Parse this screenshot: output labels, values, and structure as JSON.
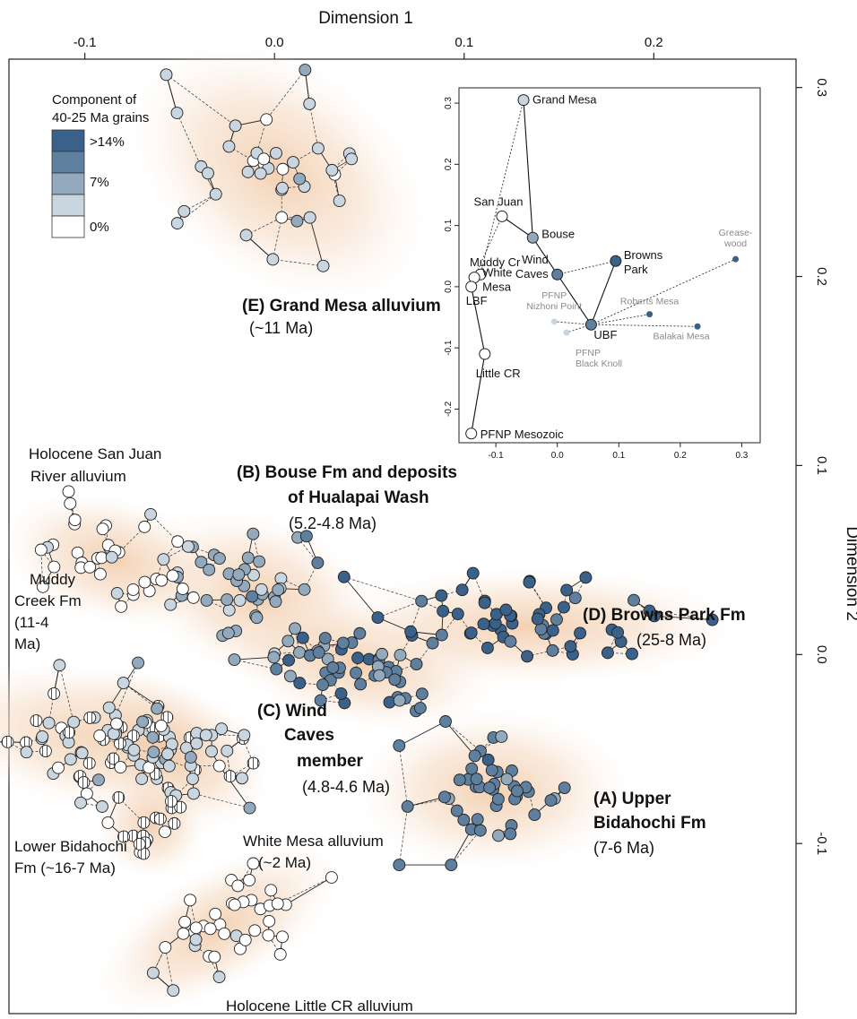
{
  "chart_data": {
    "type": "scatter",
    "xlabel": "Dimension 1",
    "ylabel": "Dimension 2",
    "x_ticks": [
      -0.1,
      0.0,
      0.1,
      0.2
    ],
    "y_ticks": [
      0.3,
      0.2,
      0.1,
      0.0,
      -0.1
    ],
    "xlim": [
      -0.14,
      0.275
    ],
    "ylim": [
      -0.19,
      0.315
    ],
    "legend": {
      "title_line1": "Component of",
      "title_line2": "40-25 Ma grains",
      "entries": [
        {
          "label": ">14%",
          "color": "#3a6189"
        },
        {
          "label": "7%",
          "color": "#93a9bd"
        },
        {
          "label": "0%",
          "color": "#ffffff"
        }
      ],
      "ramp": [
        "#3a6189",
        "#5f7f9f",
        "#93a9bd",
        "#c9d5df",
        "#ffffff"
      ],
      "placement": "top-left"
    },
    "groups": [
      {
        "id": "E",
        "label": "(E) Grand Mesa alluvium",
        "age": "(~11 Ma)",
        "center": [
          0.002,
          0.255
        ],
        "spread": [
          0.024,
          0.036
        ],
        "angle": -55,
        "n": 38,
        "shade": 3,
        "hatched_frac": 0
      },
      {
        "id": "B",
        "label_line1": "(B) Bouse Fm and deposits",
        "label_line2": "of Hualapai Wash",
        "age": "(5.2-4.8 Ma)",
        "center": [
          -0.008,
          0.03
        ],
        "spread": [
          0.018,
          0.028
        ],
        "angle": -70,
        "n": 45,
        "shade": 2,
        "hatched_frac": 0
      },
      {
        "id": "C",
        "label_line1": "(C) Wind",
        "label_line2": "Caves",
        "label_line3": "member",
        "age": "(4.8-4.6 Ma)",
        "center": [
          0.045,
          -0.005
        ],
        "spread": [
          0.03,
          0.014
        ],
        "angle": 10,
        "n": 50,
        "shade": 1,
        "hatched_frac": 0
      },
      {
        "id": "D",
        "label": "(D) Browns Park Fm",
        "age": "(25-8 Ma)",
        "center": [
          0.135,
          0.015
        ],
        "spread": [
          0.045,
          0.013
        ],
        "angle": 0,
        "n": 55,
        "shade": 0,
        "hatched_frac": 0
      },
      {
        "id": "A",
        "label_line1": "(A) Upper",
        "label_line2": "Bidahochi Fm",
        "age": "(7-6 Ma)",
        "center": [
          0.115,
          -0.072
        ],
        "spread": [
          0.03,
          0.018
        ],
        "angle": 0,
        "n": 45,
        "shade": 1,
        "hatched_frac": 0
      },
      {
        "id": "SJ",
        "label_line1": "Holocene San Juan",
        "label_line2": "River alluvium",
        "center": [
          -0.085,
          0.05
        ],
        "spread": [
          0.014,
          0.025
        ],
        "angle": -75,
        "n": 40,
        "shade": 4,
        "hatched_frac": 0
      },
      {
        "id": "MC",
        "label_line1": "Muddy",
        "label_line2": "Creek Fm",
        "label_line3": "(11-4",
        "label_line4": "Ma)",
        "center": [
          -0.09,
          -0.045
        ],
        "spread": [
          0.016,
          0.038
        ],
        "angle": -80,
        "n": 70,
        "shade": 3,
        "hatched_frac": 0.5
      },
      {
        "id": "WM",
        "label_line1": "White Mesa alluvium",
        "label_line2": "(~2 Ma)",
        "center": [
          -0.058,
          -0.05
        ],
        "spread": [
          0.015,
          0.025
        ],
        "angle": -60,
        "n": 35,
        "shade": 3,
        "hatched_frac": 0
      },
      {
        "id": "LB",
        "label_line1": "Lower Bidahochi",
        "label_line2": "Fm (~16-7 Ma)",
        "center": [
          -0.065,
          -0.09
        ],
        "spread": [
          0.012,
          0.012
        ],
        "angle": 0,
        "n": 18,
        "shade": 4,
        "hatched_frac": 0.8
      },
      {
        "id": "LC",
        "label": "Holocene Little CR alluvium",
        "center": [
          -0.03,
          -0.145
        ],
        "spread": [
          0.03,
          0.013
        ],
        "angle": -30,
        "n": 40,
        "shade": 4,
        "hatched_frac": 0
      }
    ],
    "inset": {
      "type": "scatter",
      "x_ticks": [
        -0.1,
        0.0,
        0.1,
        0.2,
        0.3
      ],
      "y_ticks": [
        0.3,
        0.2,
        0.1,
        0.0,
        -0.1,
        -0.2
      ],
      "xlim": [
        -0.16,
        0.33
      ],
      "ylim": [
        -0.255,
        0.325
      ],
      "points": [
        {
          "label": "Grand Mesa",
          "x": -0.055,
          "y": 0.305,
          "color": "#c9d5df",
          "r": 6
        },
        {
          "label": "San Juan",
          "x": -0.09,
          "y": 0.115,
          "color": "#ffffff",
          "r": 6
        },
        {
          "label": "Bouse",
          "x": -0.04,
          "y": 0.08,
          "color": "#93a9bd",
          "r": 6
        },
        {
          "label": "Wind",
          "label2": "Caves",
          "x": 0.0,
          "y": 0.02,
          "color": "#5f7f9f",
          "r": 6
        },
        {
          "label": "Browns",
          "label2": "Park",
          "x": 0.095,
          "y": 0.042,
          "color": "#3a6189",
          "r": 6
        },
        {
          "label": "Muddy Cr",
          "x": -0.125,
          "y": 0.02,
          "color": "#ffffff",
          "r": 6
        },
        {
          "label": "White",
          "label2": "Mesa",
          "x": -0.135,
          "y": 0.015,
          "color": "#ffffff",
          "r": 6
        },
        {
          "label": "LBF",
          "x": -0.14,
          "y": 0.0,
          "color": "#ffffff",
          "r": 6
        },
        {
          "label": "UBF",
          "x": 0.055,
          "y": -0.062,
          "color": "#5f7f9f",
          "r": 6
        },
        {
          "label": "Little CR",
          "x": -0.118,
          "y": -0.11,
          "color": "#ffffff",
          "r": 6
        },
        {
          "label": "PFNP Mesozoic",
          "x": -0.14,
          "y": -0.24,
          "color": "#ffffff",
          "r": 6
        },
        {
          "label": "PFNP",
          "label2": "Nizhoni Point",
          "x": -0.005,
          "y": -0.057,
          "color": "#c9d5df",
          "r": 3.5
        },
        {
          "label": "PFNP",
          "label2": "Black Knoll",
          "x": 0.015,
          "y": -0.075,
          "color": "#c9d5df",
          "r": 3.5
        },
        {
          "label": "Roberts Mesa",
          "x": 0.15,
          "y": -0.045,
          "color": "#3a6189",
          "r": 3.5
        },
        {
          "label": "Balakai Mesa",
          "x": 0.228,
          "y": -0.065,
          "color": "#3a6189",
          "r": 3.5
        },
        {
          "label": "Grease-",
          "label2": "wood",
          "x": 0.29,
          "y": 0.045,
          "color": "#3a6189",
          "r": 3.5
        }
      ],
      "solid_links": [
        [
          "Grand Mesa",
          "Bouse"
        ],
        [
          "San Juan",
          "Bouse"
        ],
        [
          "Bouse",
          "Wind"
        ],
        [
          "Wind",
          "UBF"
        ],
        [
          "UBF",
          "Browns"
        ],
        [
          "Muddy Cr",
          "White"
        ],
        [
          "White",
          "LBF"
        ],
        [
          "LBF",
          "Little CR"
        ],
        [
          "Little CR",
          "PFNP Mesozoic"
        ]
      ],
      "dashed_links": [
        [
          "Grand Mesa",
          "Muddy Cr"
        ],
        [
          "San Juan",
          "White"
        ],
        [
          "Wind",
          "Browns"
        ],
        [
          "UBF",
          "Nizhoni Point"
        ],
        [
          "UBF",
          "Black Knoll"
        ],
        [
          "UBF",
          "Roberts Mesa"
        ],
        [
          "UBF",
          "Balakai Mesa"
        ],
        [
          "UBF",
          "Grease-"
        ]
      ]
    }
  }
}
